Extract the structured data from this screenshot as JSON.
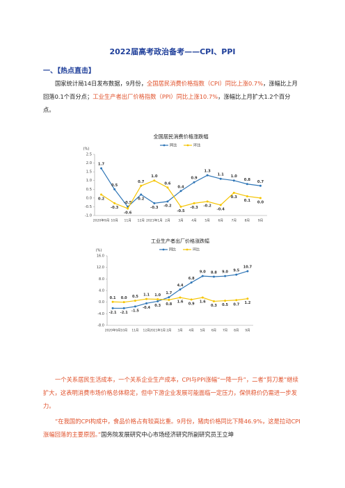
{
  "title": "2022届高考政治备考——CPI、PPI",
  "heading": "一、【热点直击】",
  "paragraphs": [
    [
      "国家统计局14日发布数据，9月份，",
      "全国居民消费价格指数（CPI）同比上涨0.7%",
      "，涨幅比上月回落0.1个百分点；",
      "工业生产者出厂价格指数（PPI）同比上涨10.7%",
      "，涨幅比上月扩大1.2个百分点。"
    ],
    [
      "一个关系居民生活成本，一个关系企业生产成本，CPI与PPI涨幅“一降一升”，二者“剪刀差”继续扩大，这表明消费市场价格总体稳定，但中下游企业发展可能面临一定压力，保供稳价仍需进一步发力。"
    ],
    [
      "“在我国的CPI构成中，食品价格占有较高比重。9月份，猪肉价格同比下降46.9%，这是拉动CPI涨幅回落的主要原因。”",
      "国务院发展研究中心市场经济研究所副研究员王立坤"
    ]
  ],
  "chart_data": [
    {
      "type": "line",
      "title": "全国居民消费价格涨跌幅",
      "y_label": "(%)",
      "categories": [
        "2020年9月",
        "10月",
        "11月",
        "12月",
        "2021年1月",
        "2月",
        "3月",
        "4月",
        "5月",
        "6月",
        "7月",
        "8月",
        "9月"
      ],
      "series": [
        {
          "name": "同比",
          "color": "#2e75b6",
          "values": [
            1.7,
            0.5,
            -0.5,
            0.2,
            -0.3,
            -0.2,
            0.4,
            0.9,
            1.3,
            1.1,
            1.0,
            0.8,
            0.7
          ],
          "value_labels": [
            "1.7",
            "0.5",
            "-0.5",
            "0.2",
            "-0.3",
            "-0.2",
            "0.4",
            "0.9",
            "1.3",
            "1.1",
            "1.0",
            "0.8",
            "0.7"
          ]
        },
        {
          "name": "环比",
          "color": "#f5c400",
          "values": [
            0.2,
            -0.3,
            -0.6,
            0.7,
            1.0,
            0.6,
            -0.5,
            -0.3,
            -0.2,
            -0.4,
            0.3,
            0.1,
            0.0
          ],
          "value_labels": [
            "0.2",
            "-0.3",
            "-0.6",
            "0.7",
            "1.0",
            "0.6",
            "-0.5",
            "-0.3",
            "-0.2",
            "-0.4",
            "0.3",
            "0.1",
            "0.0"
          ]
        }
      ],
      "ylim": [
        -1.0,
        2.5
      ],
      "yticks": [
        {
          "value": -1.0,
          "label": "-1.0"
        },
        {
          "value": -0.5,
          "label": "-0.5"
        },
        {
          "value": 0.0,
          "label": "0.0"
        },
        {
          "value": 0.5,
          "label": "0.5"
        },
        {
          "value": 1.0,
          "label": "1.0"
        },
        {
          "value": 1.5,
          "label": "1.5"
        },
        {
          "value": 2.0,
          "label": "2.0"
        },
        {
          "value": 2.5,
          "label": "2.5"
        }
      ],
      "grid": false,
      "legend": "top"
    },
    {
      "type": "line",
      "title": "工业生产者出厂价格涨跌幅",
      "y_label": "(%)",
      "categories": [
        "2020年9月",
        "10月",
        "11月",
        "12月",
        "2021年1月",
        "2月",
        "3月",
        "4月",
        "5月",
        "6月",
        "7月",
        "8月",
        "9月"
      ],
      "series": [
        {
          "name": "同比",
          "color": "#2e75b6",
          "values": [
            -2.1,
            -2.1,
            -1.5,
            -0.4,
            0.3,
            1.7,
            4.4,
            6.8,
            9.0,
            8.8,
            9.0,
            9.5,
            10.7
          ],
          "value_labels": [
            "-2.1",
            "-2.1",
            "-1.5",
            "-0.4",
            "0.3",
            "1.7",
            "4.4",
            "6.8",
            "9.0",
            "8.8",
            "9.0",
            "9.5",
            "10.7"
          ]
        },
        {
          "name": "环比",
          "color": "#f5c400",
          "values": [
            0.1,
            0.0,
            0.5,
            1.1,
            1.0,
            0.8,
            1.6,
            0.9,
            1.6,
            0.3,
            0.5,
            0.7,
            1.2
          ],
          "value_labels": [
            "0.1",
            "0.0",
            "0.5",
            "1.1",
            "1.0",
            "0.8",
            "1.6",
            "0.9",
            "1.6",
            "0.3",
            "0.5",
            "0.7",
            "1.2"
          ]
        }
      ],
      "ylim": [
        -8.0,
        16.0
      ],
      "yticks": [
        {
          "value": -8.0,
          "label": "-8.0"
        },
        {
          "value": -4.0,
          "label": "-4.0"
        },
        {
          "value": 0.0,
          "label": "0.0"
        },
        {
          "value": 4.0,
          "label": "4.0"
        },
        {
          "value": 8.0,
          "label": "8.0"
        },
        {
          "value": 12.0,
          "label": "12.0"
        },
        {
          "value": 16.0,
          "label": "16.0"
        }
      ],
      "grid": false,
      "legend": "top"
    }
  ]
}
